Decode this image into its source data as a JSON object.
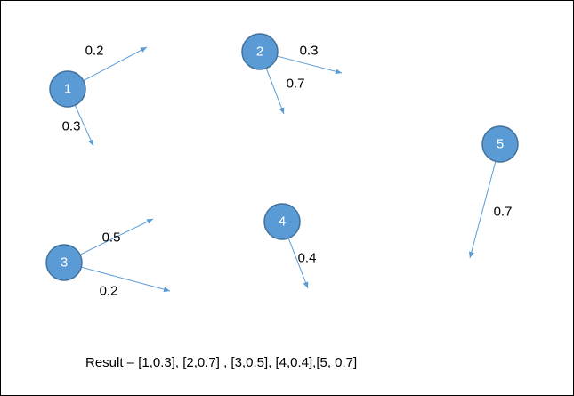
{
  "colors": {
    "node_fill": "#5b9bd5",
    "node_stroke": "#41719c",
    "edge": "#5b9bd5",
    "label_text": "#000000",
    "node_text": "#ffffff"
  },
  "nodes": [
    {
      "id": "1",
      "label": "1"
    },
    {
      "id": "2",
      "label": "2"
    },
    {
      "id": "3",
      "label": "3"
    },
    {
      "id": "4",
      "label": "4"
    },
    {
      "id": "5",
      "label": "5"
    }
  ],
  "edges": [
    {
      "from": "1",
      "label": "0.2"
    },
    {
      "from": "1",
      "label": "0.3"
    },
    {
      "from": "2",
      "label": "0.3"
    },
    {
      "from": "2",
      "label": "0.7"
    },
    {
      "from": "3",
      "label": "0.5"
    },
    {
      "from": "3",
      "label": "0.2"
    },
    {
      "from": "4",
      "label": "0.4"
    },
    {
      "from": "5",
      "label": "0.7"
    }
  ],
  "result": "Result – [1,0.3], [2,0.7] , [3,0.5], [4,0.4],[5, 0.7]"
}
